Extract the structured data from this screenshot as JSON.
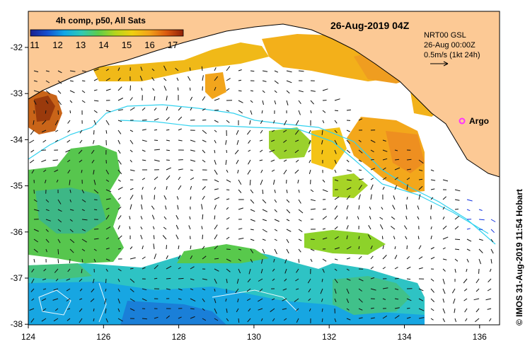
{
  "map": {
    "colorbar_title": "4h comp, p50, All Sats",
    "colorbar_ticks": [
      "11",
      "12",
      "13",
      "14",
      "15",
      "16",
      "17"
    ],
    "colorbar_colors": [
      "#1a1f8f",
      "#1650d0",
      "#11a7e6",
      "#2fc9b5",
      "#5ccd4a",
      "#b5d51c",
      "#f0cf10",
      "#f2a21a",
      "#dc5a10",
      "#8f2008"
    ],
    "date_label": "26-Aug-2019 04Z",
    "legend": {
      "model": "NRT00 GSL",
      "time": "26-Aug 00:00Z",
      "scale": "0.5m/s (1kt 24h)"
    },
    "argo_label": "Argo",
    "credit": "© IMOS 31-Aug-2019 11:54 Hobart",
    "x_ticks": [
      "124",
      "126",
      "128",
      "130",
      "132",
      "134",
      "136"
    ],
    "y_ticks": [
      "-32",
      "-33",
      "-34",
      "-35",
      "-36",
      "-37",
      "-38"
    ],
    "colors": {
      "land": "#fcc995",
      "current_line": "#32d2ef",
      "argo": "#ff33ff"
    }
  }
}
